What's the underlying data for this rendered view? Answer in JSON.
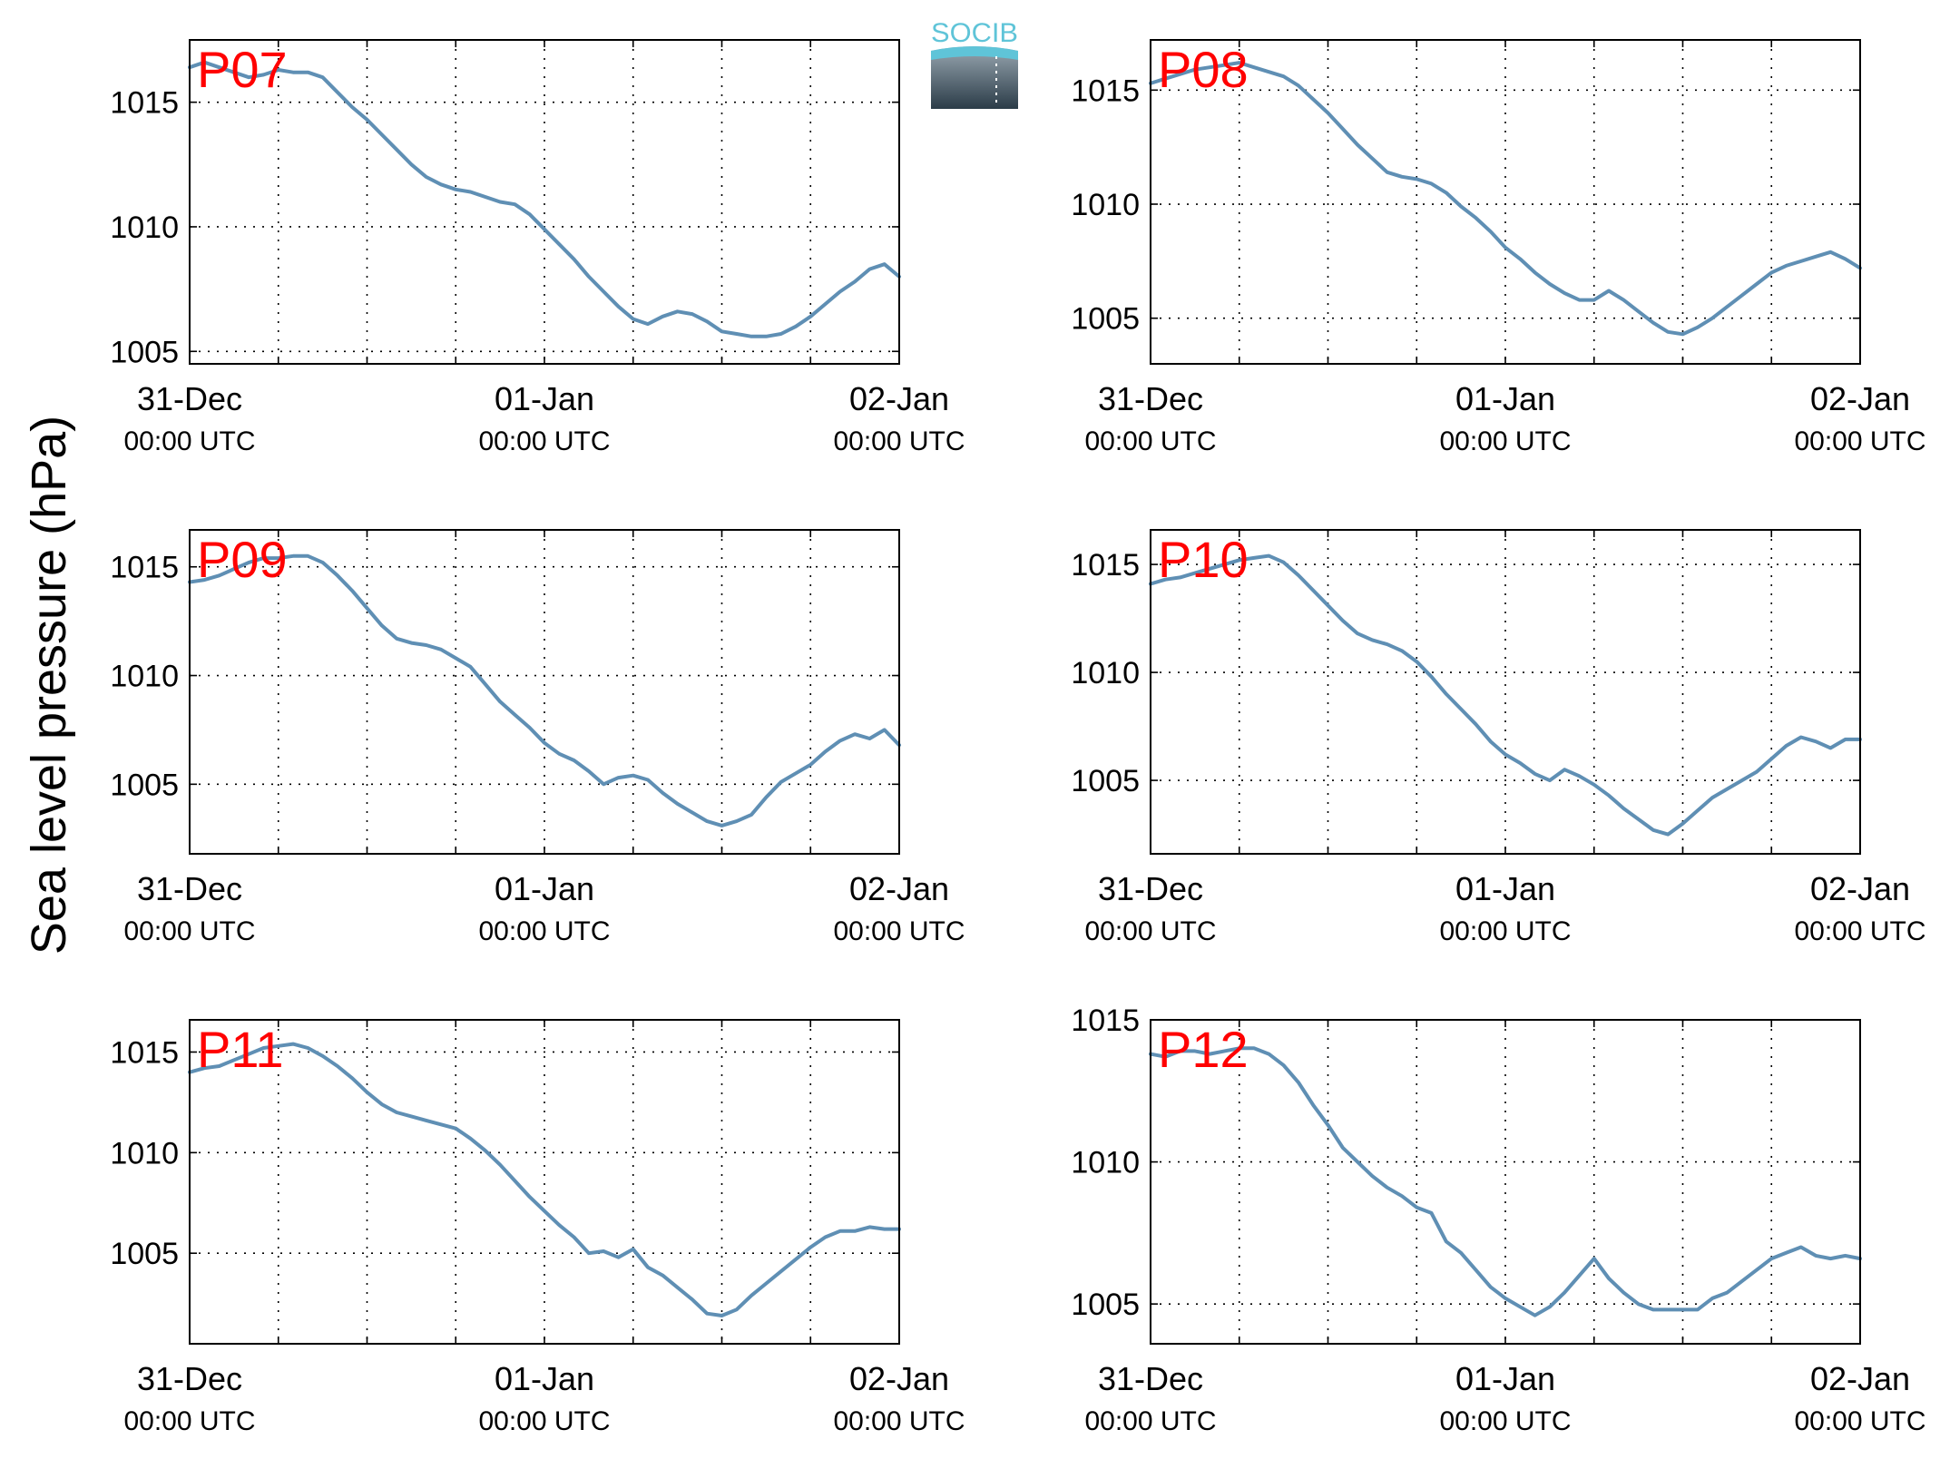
{
  "figure": {
    "ylabel": "Sea level pressure (hPa)",
    "logo_text": "SOCIB"
  },
  "colors": {
    "line": "#5f8fb4",
    "panel_label": "#ff0000",
    "logo_top": "#5fc4d8",
    "logo_bottom": "#2b3c48"
  },
  "x_ticks": [
    {
      "date": "31-Dec",
      "time": "00:00 UTC",
      "hours": 0
    },
    {
      "date": "01-Jan",
      "time": "00:00 UTC",
      "hours": 24
    },
    {
      "date": "02-Jan",
      "time": "00:00 UTC",
      "hours": 48
    }
  ],
  "chart_data": [
    {
      "type": "line",
      "panel": "P07",
      "xlim_hours": [
        0,
        48
      ],
      "ylim": [
        1004.5,
        1017.5
      ],
      "yticks": [
        1005,
        1010,
        1015
      ],
      "xgrid_hours": [
        6,
        12,
        18,
        24,
        30,
        36,
        42
      ],
      "grid": true,
      "x_hours": [
        0,
        1,
        2,
        3,
        4,
        5,
        6,
        7,
        8,
        9,
        10,
        11,
        12,
        13,
        14,
        15,
        16,
        17,
        18,
        19,
        20,
        21,
        22,
        23,
        24,
        25,
        26,
        27,
        28,
        29,
        30,
        31,
        32,
        33,
        34,
        35,
        36,
        37,
        38,
        39,
        40,
        41,
        42,
        43,
        44,
        45,
        46,
        47,
        48
      ],
      "y": [
        1016.4,
        1016.6,
        1016.4,
        1016.2,
        1016.0,
        1016.1,
        1016.3,
        1016.2,
        1016.2,
        1016.0,
        1015.4,
        1014.8,
        1014.3,
        1013.7,
        1013.1,
        1012.5,
        1012.0,
        1011.7,
        1011.5,
        1011.4,
        1011.2,
        1011.0,
        1010.9,
        1010.5,
        1009.9,
        1009.3,
        1008.7,
        1008.0,
        1007.4,
        1006.8,
        1006.3,
        1006.1,
        1006.4,
        1006.6,
        1006.5,
        1006.2,
        1005.8,
        1005.7,
        1005.6,
        1005.6,
        1005.7,
        1006.0,
        1006.4,
        1006.9,
        1007.4,
        1007.8,
        1008.3,
        1008.5,
        1008.0
      ]
    },
    {
      "type": "line",
      "panel": "P08",
      "xlim_hours": [
        0,
        48
      ],
      "ylim": [
        1003.0,
        1017.2
      ],
      "yticks": [
        1005,
        1010,
        1015
      ],
      "xgrid_hours": [
        6,
        12,
        18,
        24,
        30,
        36,
        42
      ],
      "grid": true,
      "x_hours": [
        0,
        1,
        2,
        3,
        4,
        5,
        6,
        7,
        8,
        9,
        10,
        11,
        12,
        13,
        14,
        15,
        16,
        17,
        18,
        19,
        20,
        21,
        22,
        23,
        24,
        25,
        26,
        27,
        28,
        29,
        30,
        31,
        32,
        33,
        34,
        35,
        36,
        37,
        38,
        39,
        40,
        41,
        42,
        43,
        44,
        45,
        46,
        47,
        48
      ],
      "y": [
        1015.3,
        1015.5,
        1015.7,
        1015.9,
        1016.0,
        1016.1,
        1016.2,
        1016.0,
        1015.8,
        1015.6,
        1015.2,
        1014.6,
        1014.0,
        1013.3,
        1012.6,
        1012.0,
        1011.4,
        1011.2,
        1011.1,
        1010.9,
        1010.5,
        1009.9,
        1009.4,
        1008.8,
        1008.1,
        1007.6,
        1007.0,
        1006.5,
        1006.1,
        1005.8,
        1005.8,
        1006.2,
        1005.8,
        1005.3,
        1004.8,
        1004.4,
        1004.3,
        1004.6,
        1005.0,
        1005.5,
        1006.0,
        1006.5,
        1007.0,
        1007.3,
        1007.5,
        1007.7,
        1007.9,
        1007.6,
        1007.2
      ]
    },
    {
      "type": "line",
      "panel": "P09",
      "xlim_hours": [
        0,
        48
      ],
      "ylim": [
        1001.8,
        1016.7
      ],
      "yticks": [
        1005,
        1010,
        1015
      ],
      "xgrid_hours": [
        6,
        12,
        18,
        24,
        30,
        36,
        42
      ],
      "grid": true,
      "x_hours": [
        0,
        1,
        2,
        3,
        4,
        5,
        6,
        7,
        8,
        9,
        10,
        11,
        12,
        13,
        14,
        15,
        16,
        17,
        18,
        19,
        20,
        21,
        22,
        23,
        24,
        25,
        26,
        27,
        28,
        29,
        30,
        31,
        32,
        33,
        34,
        35,
        36,
        37,
        38,
        39,
        40,
        41,
        42,
        43,
        44,
        45,
        46,
        47,
        48
      ],
      "y": [
        1014.3,
        1014.4,
        1014.6,
        1014.9,
        1015.2,
        1015.4,
        1015.4,
        1015.5,
        1015.5,
        1015.2,
        1014.6,
        1013.9,
        1013.1,
        1012.3,
        1011.7,
        1011.5,
        1011.4,
        1011.2,
        1010.8,
        1010.4,
        1009.6,
        1008.8,
        1008.2,
        1007.6,
        1006.9,
        1006.4,
        1006.1,
        1005.6,
        1005.0,
        1005.3,
        1005.4,
        1005.2,
        1004.6,
        1004.1,
        1003.7,
        1003.3,
        1003.1,
        1003.3,
        1003.6,
        1004.4,
        1005.1,
        1005.5,
        1005.9,
        1006.5,
        1007.0,
        1007.3,
        1007.1,
        1007.5,
        1006.8
      ]
    },
    {
      "type": "line",
      "panel": "P10",
      "xlim_hours": [
        0,
        48
      ],
      "ylim": [
        1001.6,
        1016.6
      ],
      "yticks": [
        1005,
        1010,
        1015
      ],
      "xgrid_hours": [
        6,
        12,
        18,
        24,
        30,
        36,
        42
      ],
      "grid": true,
      "x_hours": [
        0,
        1,
        2,
        3,
        4,
        5,
        6,
        7,
        8,
        9,
        10,
        11,
        12,
        13,
        14,
        15,
        16,
        17,
        18,
        19,
        20,
        21,
        22,
        23,
        24,
        25,
        26,
        27,
        28,
        29,
        30,
        31,
        32,
        33,
        34,
        35,
        36,
        37,
        38,
        39,
        40,
        41,
        42,
        43,
        44,
        45,
        46,
        47,
        48
      ],
      "y": [
        1014.1,
        1014.3,
        1014.4,
        1014.6,
        1014.8,
        1015.0,
        1015.2,
        1015.3,
        1015.4,
        1015.1,
        1014.5,
        1013.8,
        1013.1,
        1012.4,
        1011.8,
        1011.5,
        1011.3,
        1011.0,
        1010.5,
        1009.8,
        1009.0,
        1008.3,
        1007.6,
        1006.8,
        1006.2,
        1005.8,
        1005.3,
        1005.0,
        1005.5,
        1005.2,
        1004.8,
        1004.3,
        1003.7,
        1003.2,
        1002.7,
        1002.5,
        1003.0,
        1003.6,
        1004.2,
        1004.6,
        1005.0,
        1005.4,
        1006.0,
        1006.6,
        1007.0,
        1006.8,
        1006.5,
        1006.9,
        1006.9
      ]
    },
    {
      "type": "line",
      "panel": "P11",
      "xlim_hours": [
        0,
        48
      ],
      "ylim": [
        1000.5,
        1016.6
      ],
      "yticks": [
        1005,
        1010,
        1015
      ],
      "xgrid_hours": [
        6,
        12,
        18,
        24,
        30,
        36,
        42
      ],
      "grid": true,
      "x_hours": [
        0,
        1,
        2,
        3,
        4,
        5,
        6,
        7,
        8,
        9,
        10,
        11,
        12,
        13,
        14,
        15,
        16,
        17,
        18,
        19,
        20,
        21,
        22,
        23,
        24,
        25,
        26,
        27,
        28,
        29,
        30,
        31,
        32,
        33,
        34,
        35,
        36,
        37,
        38,
        39,
        40,
        41,
        42,
        43,
        44,
        45,
        46,
        47,
        48
      ],
      "y": [
        1014.0,
        1014.2,
        1014.3,
        1014.6,
        1014.9,
        1015.2,
        1015.3,
        1015.4,
        1015.2,
        1014.8,
        1014.3,
        1013.7,
        1013.0,
        1012.4,
        1012.0,
        1011.8,
        1011.6,
        1011.4,
        1011.2,
        1010.7,
        1010.1,
        1009.4,
        1008.6,
        1007.8,
        1007.1,
        1006.4,
        1005.8,
        1005.0,
        1005.1,
        1004.8,
        1005.2,
        1004.3,
        1003.9,
        1003.3,
        1002.7,
        1002.0,
        1001.9,
        1002.2,
        1002.9,
        1003.5,
        1004.1,
        1004.7,
        1005.3,
        1005.8,
        1006.1,
        1006.1,
        1006.3,
        1006.2,
        1006.2
      ]
    },
    {
      "type": "line",
      "panel": "P12",
      "xlim_hours": [
        0,
        48
      ],
      "ylim": [
        1003.6,
        1015.0
      ],
      "yticks": [
        1005,
        1010,
        1015
      ],
      "xgrid_hours": [
        6,
        12,
        18,
        24,
        30,
        36,
        42
      ],
      "grid": true,
      "x_hours": [
        0,
        1,
        2,
        3,
        4,
        5,
        6,
        7,
        8,
        9,
        10,
        11,
        12,
        13,
        14,
        15,
        16,
        17,
        18,
        19,
        20,
        21,
        22,
        23,
        24,
        25,
        26,
        27,
        28,
        29,
        30,
        31,
        32,
        33,
        34,
        35,
        36,
        37,
        38,
        39,
        40,
        41,
        42,
        43,
        44,
        45,
        46,
        47,
        48
      ],
      "y": [
        1013.8,
        1013.7,
        1013.9,
        1013.9,
        1013.8,
        1013.9,
        1014.0,
        1014.0,
        1013.8,
        1013.4,
        1012.8,
        1012.0,
        1011.3,
        1010.5,
        1010.0,
        1009.5,
        1009.1,
        1008.8,
        1008.4,
        1008.2,
        1007.2,
        1006.8,
        1006.2,
        1005.6,
        1005.2,
        1004.9,
        1004.6,
        1004.9,
        1005.4,
        1006.0,
        1006.6,
        1005.9,
        1005.4,
        1005.0,
        1004.8,
        1004.8,
        1004.8,
        1004.8,
        1005.2,
        1005.4,
        1005.8,
        1006.2,
        1006.6,
        1006.8,
        1007.0,
        1006.7,
        1006.6,
        1006.7,
        1006.6
      ]
    }
  ]
}
